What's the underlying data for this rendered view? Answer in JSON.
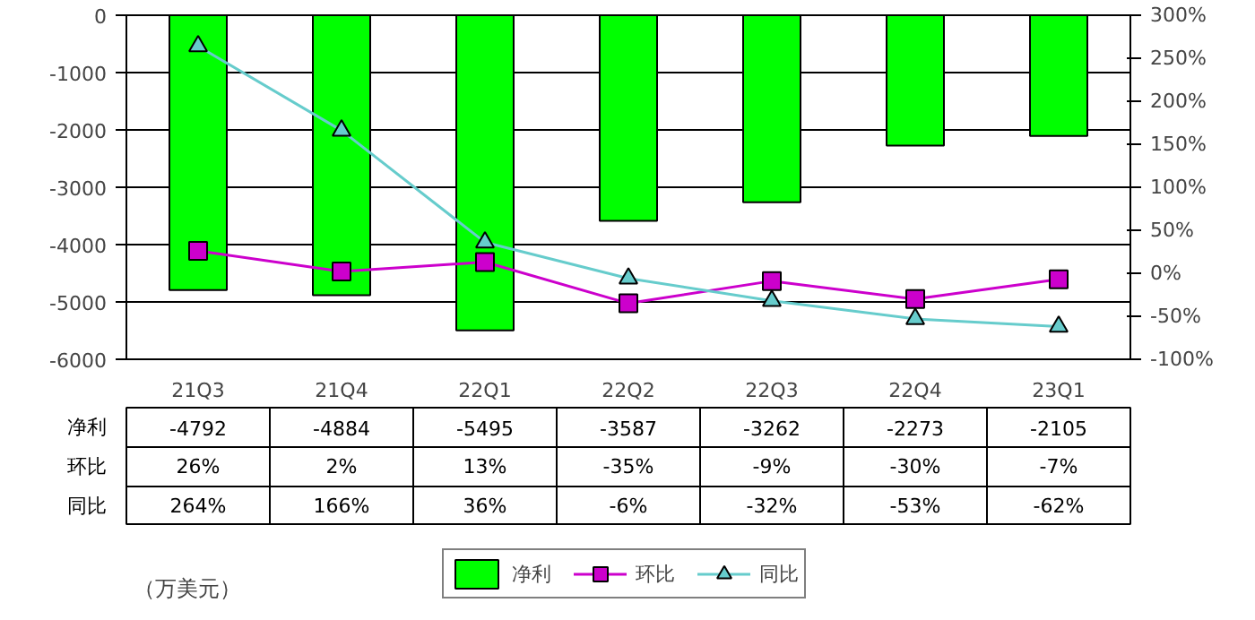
{
  "chart_data": {
    "type": "bar",
    "categories": [
      "21Q3",
      "21Q4",
      "22Q1",
      "22Q2",
      "22Q3",
      "22Q4",
      "23Q1"
    ],
    "series": [
      {
        "name": "净利",
        "color": "#00ff00",
        "values": [
          -4792,
          -4884,
          -5495,
          -3587,
          -3262,
          -2273,
          -2105
        ],
        "value_labels": [
          "-4792",
          "-4884",
          "-5495",
          "-3587",
          "-3262",
          "-2273",
          "-2105"
        ]
      },
      {
        "name": "环比",
        "type": "line",
        "axis": "y2",
        "marker": "square",
        "color": "#cc00cc",
        "values": [
          26,
          2,
          13,
          -35,
          -9,
          -30,
          -7
        ],
        "value_labels": [
          "26%",
          "2%",
          "13%",
          "-35%",
          "-9%",
          "-30%",
          "-7%"
        ]
      },
      {
        "name": "同比",
        "type": "line",
        "axis": "y2",
        "marker": "triangle",
        "color": "#66cccc",
        "values": [
          264,
          166,
          36,
          -6,
          -32,
          -53,
          -62
        ],
        "value_labels": [
          "264%",
          "166%",
          "36%",
          "-6%",
          "-32%",
          "-53%",
          "-62%"
        ]
      }
    ],
    "ylim": [
      -6000,
      0
    ],
    "yticks": [
      -6000,
      -5000,
      -4000,
      -3000,
      -2000,
      -1000,
      0
    ],
    "y2lim": [
      -100,
      300
    ],
    "y2ticks": [
      {
        "value": -100,
        "label": "-100%"
      },
      {
        "value": -50,
        "label": "-50%"
      },
      {
        "value": 0,
        "label": "0%"
      },
      {
        "value": 50,
        "label": "50%"
      },
      {
        "value": 100,
        "label": "100%"
      },
      {
        "value": 150,
        "label": "150%"
      },
      {
        "value": 200,
        "label": "200%"
      },
      {
        "value": 250,
        "label": "250%"
      },
      {
        "value": 300,
        "label": "300%"
      }
    ],
    "grid": "y",
    "legend": "bottom",
    "annotations": [
      "（万美元）"
    ]
  }
}
